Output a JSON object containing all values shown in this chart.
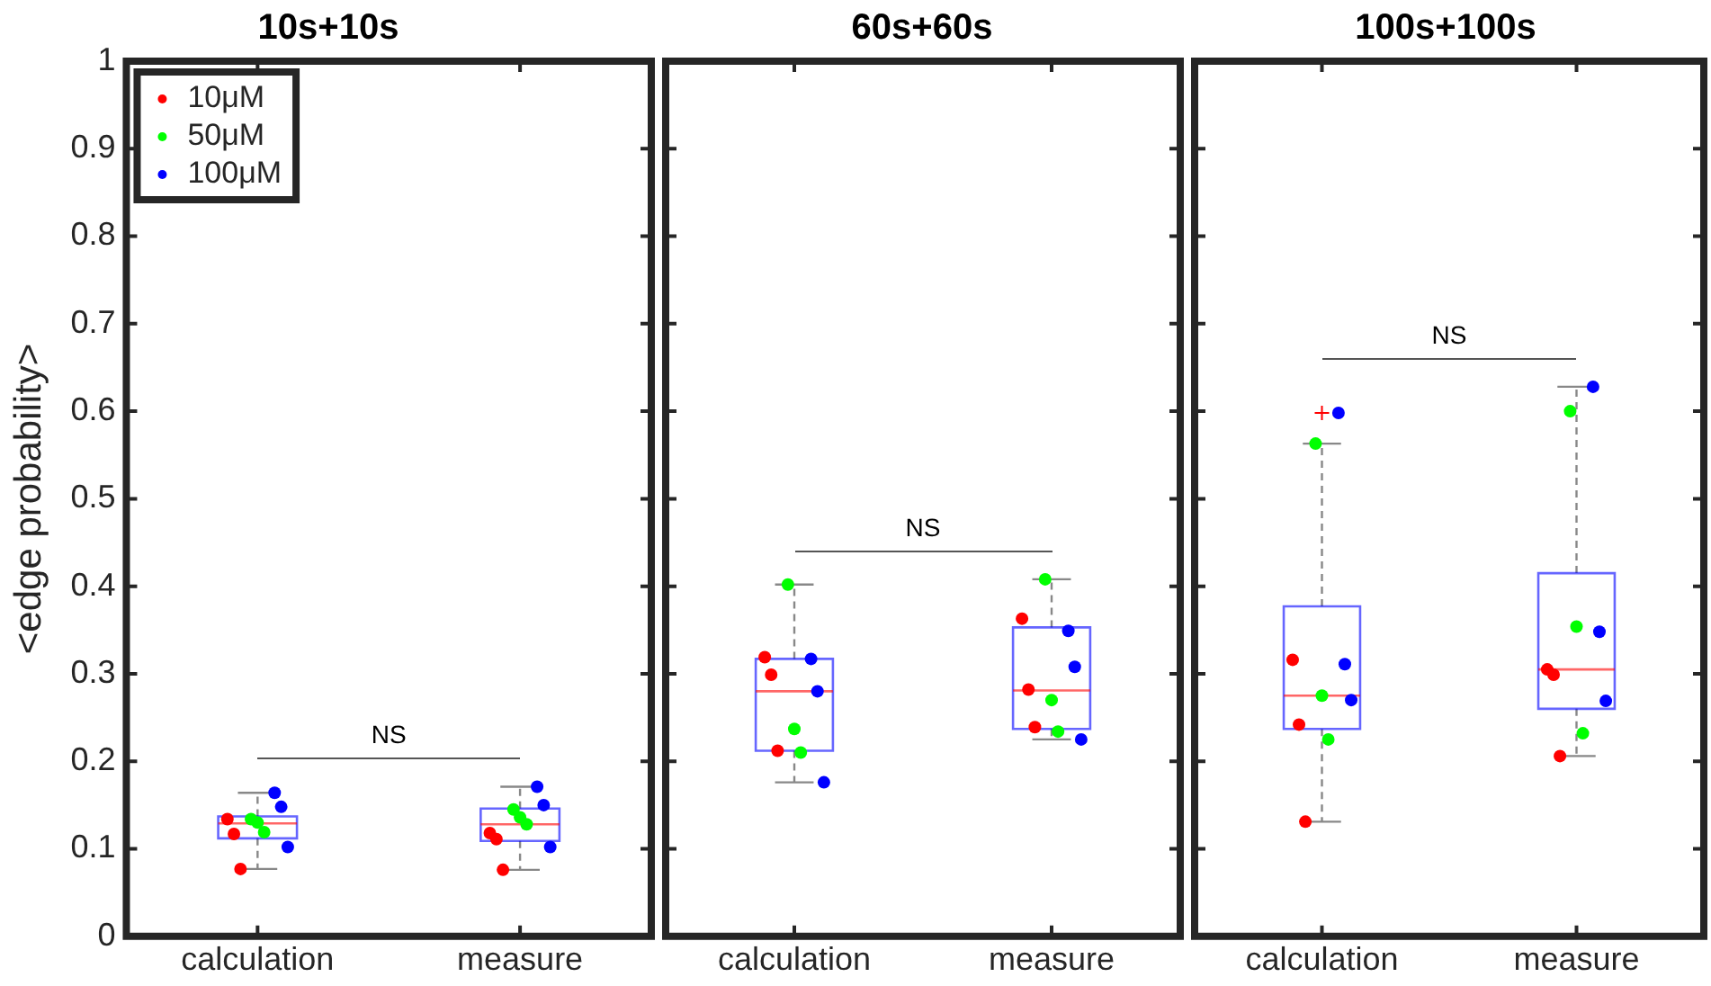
{
  "chart_data": [
    {
      "type": "box",
      "title": "10s+10s",
      "ylabel": "<edge probability>",
      "categories": [
        "calculation",
        "measure"
      ],
      "ylim": [
        0,
        1
      ],
      "yticks": [
        0,
        0.1,
        0.2,
        0.3,
        0.4,
        0.5,
        0.6,
        0.7,
        0.8,
        0.9,
        1
      ],
      "grid": false,
      "legend": "top left",
      "marker": "circle",
      "annotations": [
        "NS"
      ],
      "series": [
        {
          "type": "box",
          "color": "#0000ff",
          "boxes": [
            {
              "low": 0.077,
              "q1": 0.112,
              "median": 0.129,
              "q3": 0.137,
              "high": 0.164
            },
            {
              "low": 0.076,
              "q1": 0.109,
              "median": 0.128,
              "q3": 0.146,
              "high": 0.171
            }
          ]
        },
        {
          "type": "scatter",
          "name": "10μM",
          "color": "#ff0000",
          "x": [
            "calculation",
            "calculation",
            "calculation",
            "measure",
            "measure",
            "measure"
          ],
          "values": [
            0.134,
            0.117,
            0.077,
            0.118,
            0.111,
            0.076
          ]
        },
        {
          "type": "scatter",
          "name": "50μM",
          "color": "#00ff00",
          "x": [
            "calculation",
            "calculation",
            "calculation",
            "measure",
            "measure",
            "measure"
          ],
          "values": [
            0.134,
            0.13,
            0.119,
            0.145,
            0.136,
            0.128
          ]
        },
        {
          "type": "scatter",
          "name": "100μM",
          "color": "#0000ff",
          "x": [
            "calculation",
            "calculation",
            "calculation",
            "measure",
            "measure",
            "measure"
          ],
          "values": [
            0.164,
            0.148,
            0.102,
            0.171,
            0.15,
            0.102
          ]
        }
      ]
    },
    {
      "type": "box",
      "title": "60s+60s",
      "categories": [
        "calculation",
        "measure"
      ],
      "ylim": [
        0,
        1
      ],
      "yticks": [
        0,
        0.1,
        0.2,
        0.3,
        0.4,
        0.5,
        0.6,
        0.7,
        0.8,
        0.9,
        1
      ],
      "tick_labels": "x",
      "grid": false,
      "marker": "circle",
      "annotations": [
        "NS"
      ],
      "series": [
        {
          "type": "box",
          "color": "#0000ff",
          "boxes": [
            {
              "low": 0.176,
              "q1": 0.212,
              "median": 0.28,
              "q3": 0.317,
              "high": 0.402
            },
            {
              "low": 0.225,
              "q1": 0.237,
              "median": 0.281,
              "q3": 0.353,
              "high": 0.408
            }
          ]
        },
        {
          "type": "scatter",
          "color": "#ff0000",
          "x": [
            "calculation",
            "calculation",
            "calculation",
            "measure",
            "measure",
            "measure"
          ],
          "values": [
            0.319,
            0.299,
            0.212,
            0.363,
            0.282,
            0.239
          ]
        },
        {
          "type": "scatter",
          "color": "#00ff00",
          "x": [
            "calculation",
            "calculation",
            "calculation",
            "measure",
            "measure",
            "measure"
          ],
          "values": [
            0.402,
            0.237,
            0.21,
            0.408,
            0.27,
            0.234
          ]
        },
        {
          "type": "scatter",
          "color": "#0000ff",
          "x": [
            "calculation",
            "calculation",
            "calculation",
            "measure",
            "measure",
            "measure"
          ],
          "values": [
            0.317,
            0.28,
            0.176,
            0.349,
            0.308,
            0.225
          ]
        }
      ]
    },
    {
      "type": "box",
      "title": "100s+100s",
      "categories": [
        "calculation",
        "measure"
      ],
      "ylim": [
        0,
        1
      ],
      "yticks": [
        0,
        0.1,
        0.2,
        0.3,
        0.4,
        0.5,
        0.6,
        0.7,
        0.8,
        0.9,
        1
      ],
      "tick_labels": "x",
      "grid": false,
      "marker": "circle",
      "annotations": [
        "NS"
      ],
      "series": [
        {
          "type": "box",
          "color": "#0000ff",
          "boxes": [
            {
              "low": 0.131,
              "q1": 0.237,
              "median": 0.275,
              "q3": 0.377,
              "high": 0.563,
              "outliers": [
                0.598
              ]
            },
            {
              "low": 0.206,
              "q1": 0.26,
              "median": 0.305,
              "q3": 0.415,
              "high": 0.628
            }
          ]
        },
        {
          "type": "scatter",
          "color": "#ff0000",
          "x": [
            "calculation",
            "calculation",
            "calculation",
            "measure",
            "measure",
            "measure"
          ],
          "values": [
            0.316,
            0.242,
            0.131,
            0.305,
            0.299,
            0.206
          ]
        },
        {
          "type": "scatter",
          "color": "#00ff00",
          "x": [
            "calculation",
            "calculation",
            "calculation",
            "measure",
            "measure",
            "measure"
          ],
          "values": [
            0.563,
            0.275,
            0.225,
            0.6,
            0.354,
            0.232
          ]
        },
        {
          "type": "scatter",
          "color": "#0000ff",
          "x": [
            "calculation",
            "calculation",
            "calculation",
            "measure",
            "measure",
            "measure"
          ],
          "values": [
            0.598,
            0.311,
            0.27,
            0.628,
            0.348,
            0.269
          ]
        }
      ]
    }
  ]
}
